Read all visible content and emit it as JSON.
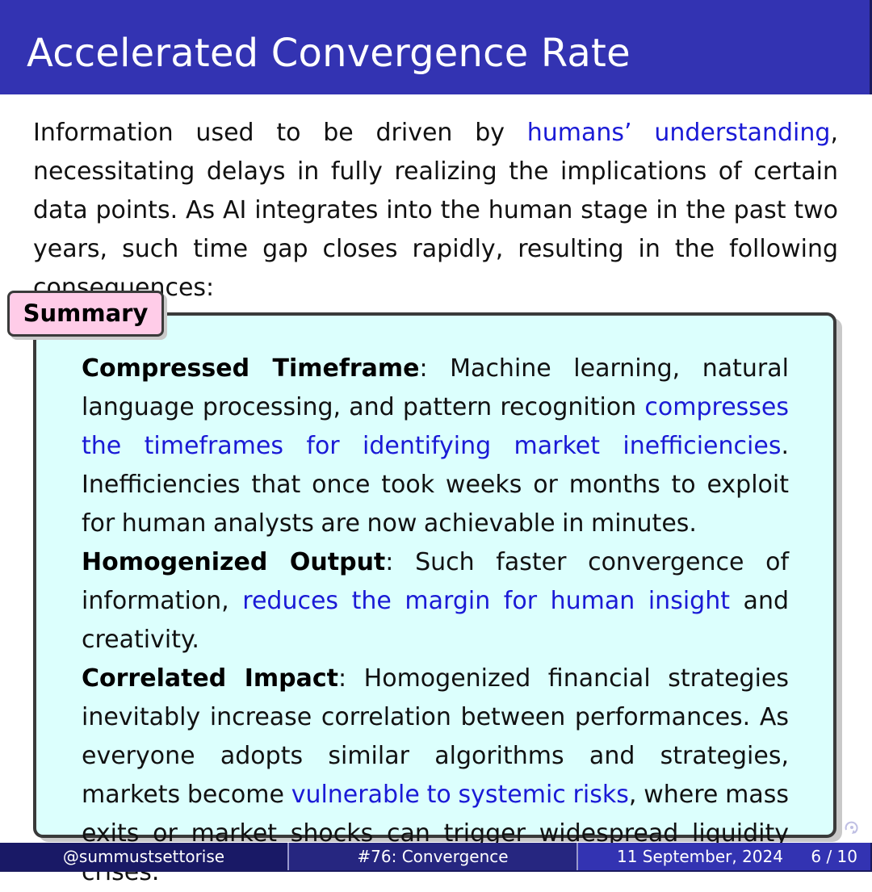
{
  "slide": {
    "title": "Accelerated Convergence Rate",
    "intro": {
      "before_link": "Information used to be driven by ",
      "link": "humans’ understanding",
      "after_link": ", necessitating delays in fully realizing the implications of certain data points.  As AI integrates into the human stage in the past two years, such time gap closes rapidly, resulting in the following consequences:"
    }
  },
  "summary": {
    "heading": "Summary",
    "items": [
      {
        "term": "Compressed Timeframe",
        "sep": ":  ",
        "before_link": "Machine learning, natural language processing, and pattern recognition ",
        "link": "compresses the timeframes for identifying market inefficiencies",
        "after_link": ".  Inefficiencies that once took weeks or months to exploit for human analysts are now achievable in minutes."
      },
      {
        "term": "Homogenized Output",
        "sep": ": ",
        "before_link": "Such faster convergence of information, ",
        "link": "reduces the margin for human insight",
        "after_link": " and creativity."
      },
      {
        "term": "Correlated Impact",
        "sep": ":  ",
        "before_link": "Homogenized financial strategies inevitably increase correlation between performances.  As everyone adopts similar algorithms and strategies, markets become ",
        "link": "vulnerable to systemic risks",
        "after_link": ", where mass exits or market shocks can trigger widespread liquidity crises."
      }
    ]
  },
  "footer": {
    "author": "@summustsettorise",
    "talk": "#76: Convergence",
    "date": "11 September, 2024",
    "page": "6 / 10"
  },
  "colors": {
    "title_bar": "#3333b2",
    "link": "#1a1ad6",
    "summary_body_bg": "#dcfffd",
    "summary_tab_bg": "#ffcce8",
    "footer_left": "#191966",
    "footer_middle": "#262680",
    "footer_right": "#3333b2"
  },
  "icons": {
    "navigation": "beamer-navigation-icon"
  }
}
